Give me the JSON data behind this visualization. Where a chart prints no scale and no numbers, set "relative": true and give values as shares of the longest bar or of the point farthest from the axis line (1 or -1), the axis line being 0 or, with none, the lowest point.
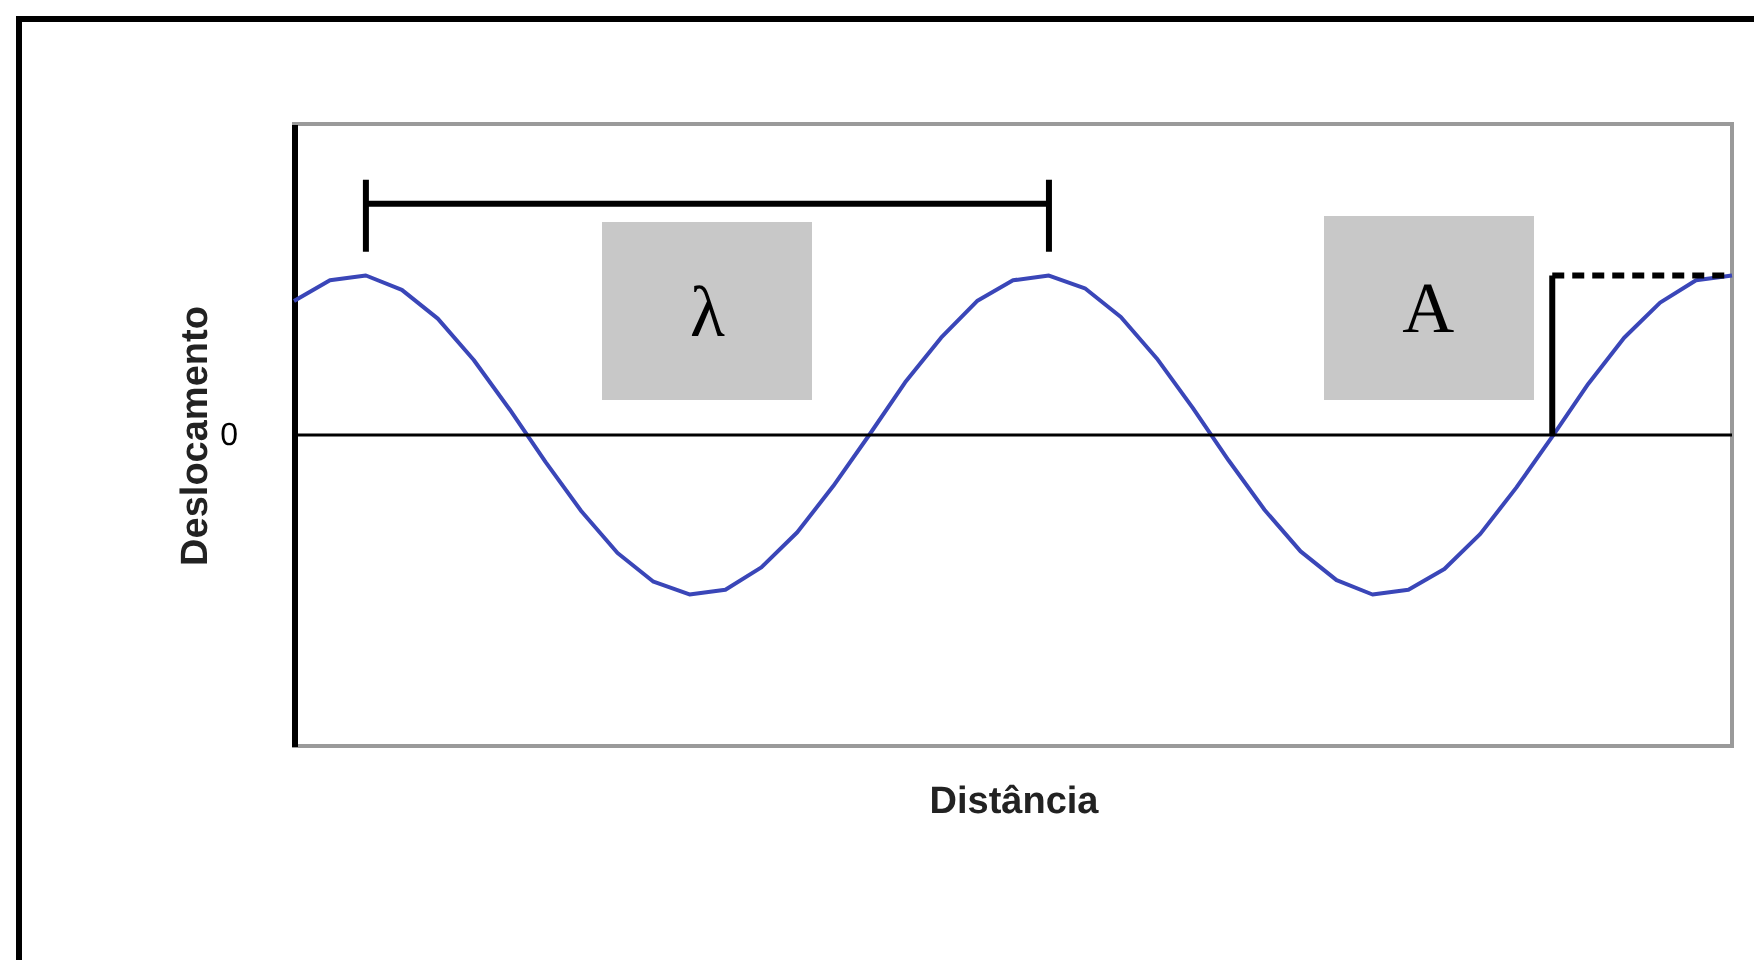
{
  "chart_data": {
    "type": "line",
    "relative": true,
    "xlabel": "Distância",
    "ylabel": "Deslocamento",
    "categories": [
      null,
      null,
      null,
      null,
      null,
      null,
      null,
      null,
      null,
      null,
      null,
      null,
      null,
      null,
      null,
      null,
      null,
      null,
      null,
      null,
      null,
      null,
      null,
      null,
      null,
      null,
      null,
      null,
      null,
      null,
      null,
      null,
      null,
      null,
      null,
      null,
      null,
      null,
      null,
      null,
      null
    ],
    "series": [
      {
        "color": "#3a46b8",
        "values": [
          0.84,
          0.97,
          1.0,
          0.91,
          0.73,
          0.47,
          0.16,
          -0.17,
          -0.48,
          -0.74,
          -0.92,
          -1.0,
          -0.97,
          -0.83,
          -0.61,
          -0.32,
          0.0,
          0.33,
          0.61,
          0.84,
          0.97,
          1.0,
          0.92,
          0.74,
          0.48,
          0.17,
          -0.16,
          -0.47,
          -0.73,
          -0.91,
          -1.0,
          -0.97,
          -0.84,
          -0.62,
          -0.33,
          -0.01,
          0.32,
          0.61,
          0.83,
          0.97,
          1.0
        ]
      }
    ],
    "ref_lines": [
      {
        "axis": "y",
        "value": 0,
        "label": "0",
        "color": "#000000"
      }
    ],
    "annotations": [
      "λ",
      "A"
    ]
  }
}
